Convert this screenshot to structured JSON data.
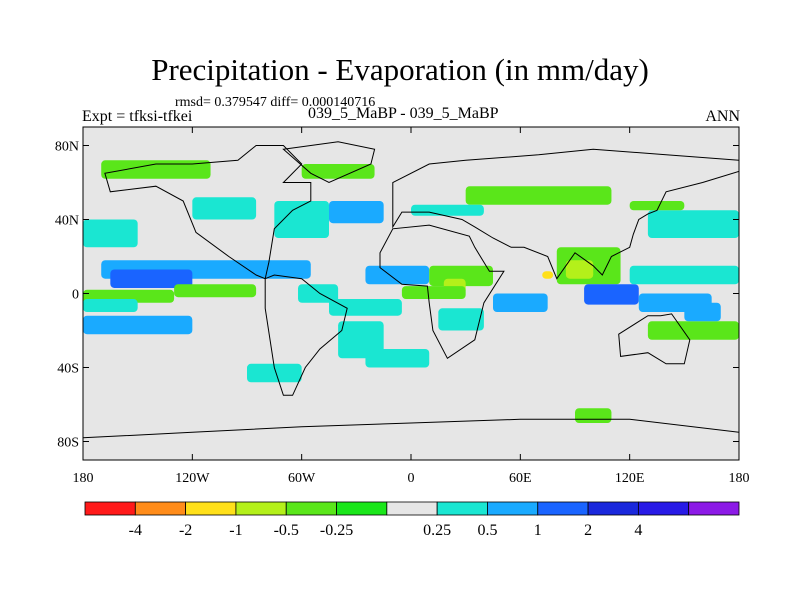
{
  "header": {
    "title": "Precipitation - Evaporation (in mm/day)",
    "stats": "rmsd= 0.379547 diff= 0.000140716",
    "experiment": "Expt = tfksi-tfkei",
    "cases": "039_5_MaBP - 039_5_MaBP",
    "season": "ANN"
  },
  "chart_data": {
    "type": "heatmap",
    "title": "Precipitation - Evaporation (in mm/day)",
    "xlabel": "",
    "ylabel": "",
    "x_range": [
      -180,
      180
    ],
    "y_range": [
      -90,
      90
    ],
    "x_ticks": [
      {
        "value": -180,
        "label": "180"
      },
      {
        "value": -120,
        "label": "120W"
      },
      {
        "value": -60,
        "label": "60W"
      },
      {
        "value": 0,
        "label": "0"
      },
      {
        "value": 60,
        "label": "60E"
      },
      {
        "value": 120,
        "label": "120E"
      },
      {
        "value": 180,
        "label": "180"
      }
    ],
    "y_ticks": [
      {
        "value": 80,
        "label": "80N"
      },
      {
        "value": 40,
        "label": "40N"
      },
      {
        "value": 0,
        "label": "0"
      },
      {
        "value": -40,
        "label": "40S"
      },
      {
        "value": -80,
        "label": "80S"
      }
    ],
    "colorbar": {
      "levels": [
        "-4",
        "-2",
        "-1",
        "-0.5",
        "-0.25",
        "0.25",
        "0.5",
        "1",
        "2",
        "4"
      ],
      "colors": [
        "#ff1a1a",
        "#ff8c1a",
        "#ffe01a",
        "#b4f01a",
        "#5ae61a",
        "#1ae61a",
        "#e6e6e6",
        "#1ae6d2",
        "#1aaaff",
        "#1a64ff",
        "#1a28dc",
        "#281ae6",
        "#8c1ae6"
      ]
    },
    "background_value_color": "#e6e6e6",
    "regions": [
      {
        "lon": [
          -170,
          -55
        ],
        "lat": [
          8,
          18
        ],
        "color": "#1aaaff"
      },
      {
        "lon": [
          -165,
          -120
        ],
        "lat": [
          3,
          13
        ],
        "color": "#1a64ff"
      },
      {
        "lon": [
          -180,
          -150
        ],
        "lat": [
          25,
          40
        ],
        "color": "#1ae6d2"
      },
      {
        "lon": [
          -120,
          -85
        ],
        "lat": [
          40,
          52
        ],
        "color": "#1ae6d2"
      },
      {
        "lon": [
          -75,
          -45
        ],
        "lat": [
          30,
          50
        ],
        "color": "#1ae6d2"
      },
      {
        "lon": [
          -45,
          -15
        ],
        "lat": [
          38,
          50
        ],
        "color": "#1aaaff"
      },
      {
        "lon": [
          -25,
          10
        ],
        "lat": [
          5,
          15
        ],
        "color": "#1aaaff"
      },
      {
        "lon": [
          -180,
          -130
        ],
        "lat": [
          -5,
          2
        ],
        "color": "#5ae61a"
      },
      {
        "lon": [
          -180,
          -120
        ],
        "lat": [
          -22,
          -12
        ],
        "color": "#1aaaff"
      },
      {
        "lon": [
          -130,
          -85
        ],
        "lat": [
          -2,
          5
        ],
        "color": "#5ae61a"
      },
      {
        "lon": [
          -62,
          -40
        ],
        "lat": [
          -5,
          5
        ],
        "color": "#1ae6d2"
      },
      {
        "lon": [
          -45,
          -5
        ],
        "lat": [
          -12,
          -3
        ],
        "color": "#1ae6d2"
      },
      {
        "lon": [
          -40,
          -15
        ],
        "lat": [
          -35,
          -15
        ],
        "color": "#1ae6d2"
      },
      {
        "lon": [
          10,
          45
        ],
        "lat": [
          4,
          15
        ],
        "color": "#5ae61a"
      },
      {
        "lon": [
          18,
          30
        ],
        "lat": [
          0,
          8
        ],
        "color": "#b4f01a"
      },
      {
        "lon": [
          -5,
          30
        ],
        "lat": [
          -3,
          4
        ],
        "color": "#5ae61a"
      },
      {
        "lon": [
          15,
          40
        ],
        "lat": [
          -20,
          -8
        ],
        "color": "#1ae6d2"
      },
      {
        "lon": [
          45,
          75
        ],
        "lat": [
          -10,
          0
        ],
        "color": "#1aaaff"
      },
      {
        "lon": [
          80,
          115
        ],
        "lat": [
          5,
          25
        ],
        "color": "#5ae61a"
      },
      {
        "lon": [
          85,
          100
        ],
        "lat": [
          8,
          18
        ],
        "color": "#b4f01a"
      },
      {
        "lon": [
          72,
          78
        ],
        "lat": [
          8,
          12
        ],
        "color": "#ffe01a"
      },
      {
        "lon": [
          95,
          125
        ],
        "lat": [
          -6,
          5
        ],
        "color": "#1a64ff"
      },
      {
        "lon": [
          125,
          165
        ],
        "lat": [
          -10,
          0
        ],
        "color": "#1aaaff"
      },
      {
        "lon": [
          120,
          180
        ],
        "lat": [
          5,
          15
        ],
        "color": "#1ae6d2"
      },
      {
        "lon": [
          130,
          180
        ],
        "lat": [
          30,
          45
        ],
        "color": "#1ae6d2"
      },
      {
        "lon": [
          120,
          150
        ],
        "lat": [
          45,
          50
        ],
        "color": "#5ae61a"
      },
      {
        "lon": [
          30,
          110
        ],
        "lat": [
          48,
          58
        ],
        "color": "#5ae61a"
      },
      {
        "lon": [
          -60,
          -20
        ],
        "lat": [
          62,
          70
        ],
        "color": "#5ae61a"
      },
      {
        "lon": [
          -170,
          -110
        ],
        "lat": [
          62,
          72
        ],
        "color": "#5ae61a"
      },
      {
        "lon": [
          130,
          180
        ],
        "lat": [
          -25,
          -15
        ],
        "color": "#5ae61a"
      },
      {
        "lon": [
          -180,
          -150
        ],
        "lat": [
          -10,
          -3
        ],
        "color": "#1ae6d2"
      },
      {
        "lon": [
          150,
          170
        ],
        "lat": [
          -15,
          -5
        ],
        "color": "#1aaaff"
      },
      {
        "lon": [
          0,
          40
        ],
        "lat": [
          42,
          48
        ],
        "color": "#1ae6d2"
      },
      {
        "lon": [
          -90,
          -60
        ],
        "lat": [
          -48,
          -38
        ],
        "color": "#1ae6d2"
      },
      {
        "lon": [
          -25,
          10
        ],
        "lat": [
          -40,
          -30
        ],
        "color": "#1ae6d2"
      },
      {
        "lon": [
          90,
          110
        ],
        "lat": [
          -70,
          -62
        ],
        "color": "#5ae61a"
      }
    ],
    "continents": [
      {
        "name": "North America",
        "lon": [
          -168,
          -165,
          -140,
          -125,
          -118,
          -100,
          -85,
          -80,
          -78,
          -75,
          -65,
          -55,
          -55,
          -70,
          -60,
          -70,
          -85,
          -95,
          -120,
          -140,
          -168
        ],
        "lat": [
          65,
          55,
          58,
          50,
          33,
          20,
          10,
          8,
          17,
          35,
          45,
          50,
          60,
          60,
          70,
          80,
          80,
          72,
          70,
          70,
          65
        ]
      },
      {
        "name": "South America",
        "lon": [
          -80,
          -75,
          -60,
          -50,
          -35,
          -38,
          -50,
          -58,
          -65,
          -70,
          -75,
          -80
        ],
        "lat": [
          8,
          10,
          8,
          0,
          -8,
          -20,
          -30,
          -40,
          -55,
          -55,
          -40,
          -8
        ]
      },
      {
        "name": "Greenland",
        "lon": [
          -70,
          -40,
          -20,
          -22,
          -45,
          -55,
          -70
        ],
        "lat": [
          78,
          82,
          78,
          70,
          60,
          65,
          78
        ]
      },
      {
        "name": "Africa",
        "lon": [
          -17,
          -10,
          10,
          32,
          35,
          43,
          51,
          40,
          35,
          20,
          12,
          10,
          9,
          -5,
          -17
        ],
        "lat": [
          22,
          35,
          37,
          31,
          25,
          12,
          12,
          -5,
          -25,
          -35,
          -20,
          -5,
          4,
          5,
          14
        ]
      },
      {
        "name": "Eurasia",
        "lon": [
          -10,
          -5,
          10,
          28,
          35,
          45,
          55,
          62,
          75,
          80,
          90,
          100,
          105,
          110,
          120,
          122,
          125,
          130,
          135,
          140,
          160,
          180,
          180,
          140,
          100,
          70,
          30,
          10,
          -10
        ],
        "lat": [
          36,
          44,
          44,
          40,
          36,
          30,
          25,
          25,
          20,
          8,
          22,
          15,
          10,
          20,
          25,
          32,
          40,
          43,
          45,
          55,
          60,
          66,
          72,
          75,
          78,
          75,
          72,
          70,
          60
        ]
      },
      {
        "name": "Australia",
        "lon": [
          114,
          130,
          137,
          143,
          153,
          150,
          140,
          130,
          115,
          114
        ],
        "lat": [
          -22,
          -12,
          -12,
          -11,
          -25,
          -38,
          -38,
          -32,
          -34,
          -22
        ]
      },
      {
        "name": "Antarctica",
        "lon": [
          -180,
          -120,
          -60,
          0,
          60,
          120,
          180,
          180,
          -180
        ],
        "lat": [
          -78,
          -75,
          -72,
          -70,
          -68,
          -68,
          -75,
          -90,
          -90
        ]
      }
    ]
  }
}
